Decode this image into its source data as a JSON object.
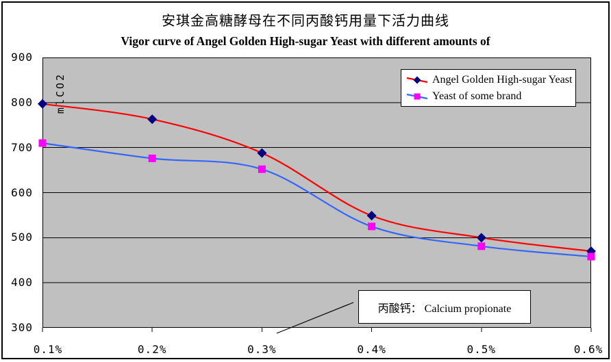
{
  "chart_data": {
    "type": "line",
    "title": "安琪金高糖酵母在不同丙酸钙用量下活力曲线",
    "subtitle": "Vigor curve of Angel Golden High-sugar Yeast with different amounts of",
    "ylabel": "mlCO2",
    "xlabel": "",
    "categories": [
      "0.1%",
      "0.2%",
      "0.3%",
      "0.4%",
      "0.5%",
      "0.6%"
    ],
    "series": [
      {
        "name": "Angel Golden High-sugar Yeast",
        "values": [
          797,
          763,
          688,
          549,
          500,
          470
        ],
        "line_color": "#FF0000",
        "marker": "diamond",
        "marker_color": "#000080"
      },
      {
        "name": "Yeast of some brand",
        "values": [
          710,
          676,
          652,
          525,
          481,
          458
        ],
        "line_color": "#3366FF",
        "marker": "square",
        "marker_color": "#FF00FF"
      }
    ],
    "ylim": [
      300,
      900
    ],
    "ytick_step": 100,
    "smoothed": true,
    "grid": true,
    "legend_position": "top-right",
    "plot_bg_color": "#C0C0C0",
    "gridline_color": "#000000",
    "annotation": "丙酸钙： Calcium propionate"
  }
}
